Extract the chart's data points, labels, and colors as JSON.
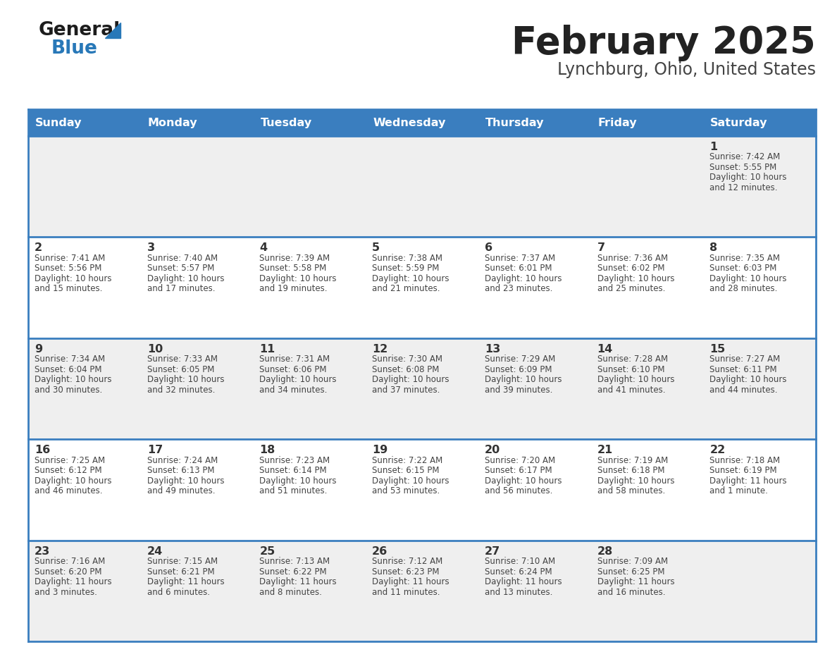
{
  "title": "February 2025",
  "subtitle": "Lynchburg, Ohio, United States",
  "days_of_week": [
    "Sunday",
    "Monday",
    "Tuesday",
    "Wednesday",
    "Thursday",
    "Friday",
    "Saturday"
  ],
  "header_bg": "#3a7ebf",
  "header_text": "#ffffff",
  "row_bg_odd": "#efefef",
  "row_bg_even": "#ffffff",
  "border_color": "#3a7ebf",
  "day_number_color": "#333333",
  "cell_text_color": "#444444",
  "title_color": "#222222",
  "subtitle_color": "#444444",
  "calendar_data": [
    {
      "day": 1,
      "col": 6,
      "row": 0,
      "sunrise": "7:42 AM",
      "sunset": "5:55 PM",
      "daylight": "10 hours",
      "daylight2": "and 12 minutes."
    },
    {
      "day": 2,
      "col": 0,
      "row": 1,
      "sunrise": "7:41 AM",
      "sunset": "5:56 PM",
      "daylight": "10 hours",
      "daylight2": "and 15 minutes."
    },
    {
      "day": 3,
      "col": 1,
      "row": 1,
      "sunrise": "7:40 AM",
      "sunset": "5:57 PM",
      "daylight": "10 hours",
      "daylight2": "and 17 minutes."
    },
    {
      "day": 4,
      "col": 2,
      "row": 1,
      "sunrise": "7:39 AM",
      "sunset": "5:58 PM",
      "daylight": "10 hours",
      "daylight2": "and 19 minutes."
    },
    {
      "day": 5,
      "col": 3,
      "row": 1,
      "sunrise": "7:38 AM",
      "sunset": "5:59 PM",
      "daylight": "10 hours",
      "daylight2": "and 21 minutes."
    },
    {
      "day": 6,
      "col": 4,
      "row": 1,
      "sunrise": "7:37 AM",
      "sunset": "6:01 PM",
      "daylight": "10 hours",
      "daylight2": "and 23 minutes."
    },
    {
      "day": 7,
      "col": 5,
      "row": 1,
      "sunrise": "7:36 AM",
      "sunset": "6:02 PM",
      "daylight": "10 hours",
      "daylight2": "and 25 minutes."
    },
    {
      "day": 8,
      "col": 6,
      "row": 1,
      "sunrise": "7:35 AM",
      "sunset": "6:03 PM",
      "daylight": "10 hours",
      "daylight2": "and 28 minutes."
    },
    {
      "day": 9,
      "col": 0,
      "row": 2,
      "sunrise": "7:34 AM",
      "sunset": "6:04 PM",
      "daylight": "10 hours",
      "daylight2": "and 30 minutes."
    },
    {
      "day": 10,
      "col": 1,
      "row": 2,
      "sunrise": "7:33 AM",
      "sunset": "6:05 PM",
      "daylight": "10 hours",
      "daylight2": "and 32 minutes."
    },
    {
      "day": 11,
      "col": 2,
      "row": 2,
      "sunrise": "7:31 AM",
      "sunset": "6:06 PM",
      "daylight": "10 hours",
      "daylight2": "and 34 minutes."
    },
    {
      "day": 12,
      "col": 3,
      "row": 2,
      "sunrise": "7:30 AM",
      "sunset": "6:08 PM",
      "daylight": "10 hours",
      "daylight2": "and 37 minutes."
    },
    {
      "day": 13,
      "col": 4,
      "row": 2,
      "sunrise": "7:29 AM",
      "sunset": "6:09 PM",
      "daylight": "10 hours",
      "daylight2": "and 39 minutes."
    },
    {
      "day": 14,
      "col": 5,
      "row": 2,
      "sunrise": "7:28 AM",
      "sunset": "6:10 PM",
      "daylight": "10 hours",
      "daylight2": "and 41 minutes."
    },
    {
      "day": 15,
      "col": 6,
      "row": 2,
      "sunrise": "7:27 AM",
      "sunset": "6:11 PM",
      "daylight": "10 hours",
      "daylight2": "and 44 minutes."
    },
    {
      "day": 16,
      "col": 0,
      "row": 3,
      "sunrise": "7:25 AM",
      "sunset": "6:12 PM",
      "daylight": "10 hours",
      "daylight2": "and 46 minutes."
    },
    {
      "day": 17,
      "col": 1,
      "row": 3,
      "sunrise": "7:24 AM",
      "sunset": "6:13 PM",
      "daylight": "10 hours",
      "daylight2": "and 49 minutes."
    },
    {
      "day": 18,
      "col": 2,
      "row": 3,
      "sunrise": "7:23 AM",
      "sunset": "6:14 PM",
      "daylight": "10 hours",
      "daylight2": "and 51 minutes."
    },
    {
      "day": 19,
      "col": 3,
      "row": 3,
      "sunrise": "7:22 AM",
      "sunset": "6:15 PM",
      "daylight": "10 hours",
      "daylight2": "and 53 minutes."
    },
    {
      "day": 20,
      "col": 4,
      "row": 3,
      "sunrise": "7:20 AM",
      "sunset": "6:17 PM",
      "daylight": "10 hours",
      "daylight2": "and 56 minutes."
    },
    {
      "day": 21,
      "col": 5,
      "row": 3,
      "sunrise": "7:19 AM",
      "sunset": "6:18 PM",
      "daylight": "10 hours",
      "daylight2": "and 58 minutes."
    },
    {
      "day": 22,
      "col": 6,
      "row": 3,
      "sunrise": "7:18 AM",
      "sunset": "6:19 PM",
      "daylight": "11 hours",
      "daylight2": "and 1 minute."
    },
    {
      "day": 23,
      "col": 0,
      "row": 4,
      "sunrise": "7:16 AM",
      "sunset": "6:20 PM",
      "daylight": "11 hours",
      "daylight2": "and 3 minutes."
    },
    {
      "day": 24,
      "col": 1,
      "row": 4,
      "sunrise": "7:15 AM",
      "sunset": "6:21 PM",
      "daylight": "11 hours",
      "daylight2": "and 6 minutes."
    },
    {
      "day": 25,
      "col": 2,
      "row": 4,
      "sunrise": "7:13 AM",
      "sunset": "6:22 PM",
      "daylight": "11 hours",
      "daylight2": "and 8 minutes."
    },
    {
      "day": 26,
      "col": 3,
      "row": 4,
      "sunrise": "7:12 AM",
      "sunset": "6:23 PM",
      "daylight": "11 hours",
      "daylight2": "and 11 minutes."
    },
    {
      "day": 27,
      "col": 4,
      "row": 4,
      "sunrise": "7:10 AM",
      "sunset": "6:24 PM",
      "daylight": "11 hours",
      "daylight2": "and 13 minutes."
    },
    {
      "day": 28,
      "col": 5,
      "row": 4,
      "sunrise": "7:09 AM",
      "sunset": "6:25 PM",
      "daylight": "11 hours",
      "daylight2": "and 16 minutes."
    }
  ]
}
